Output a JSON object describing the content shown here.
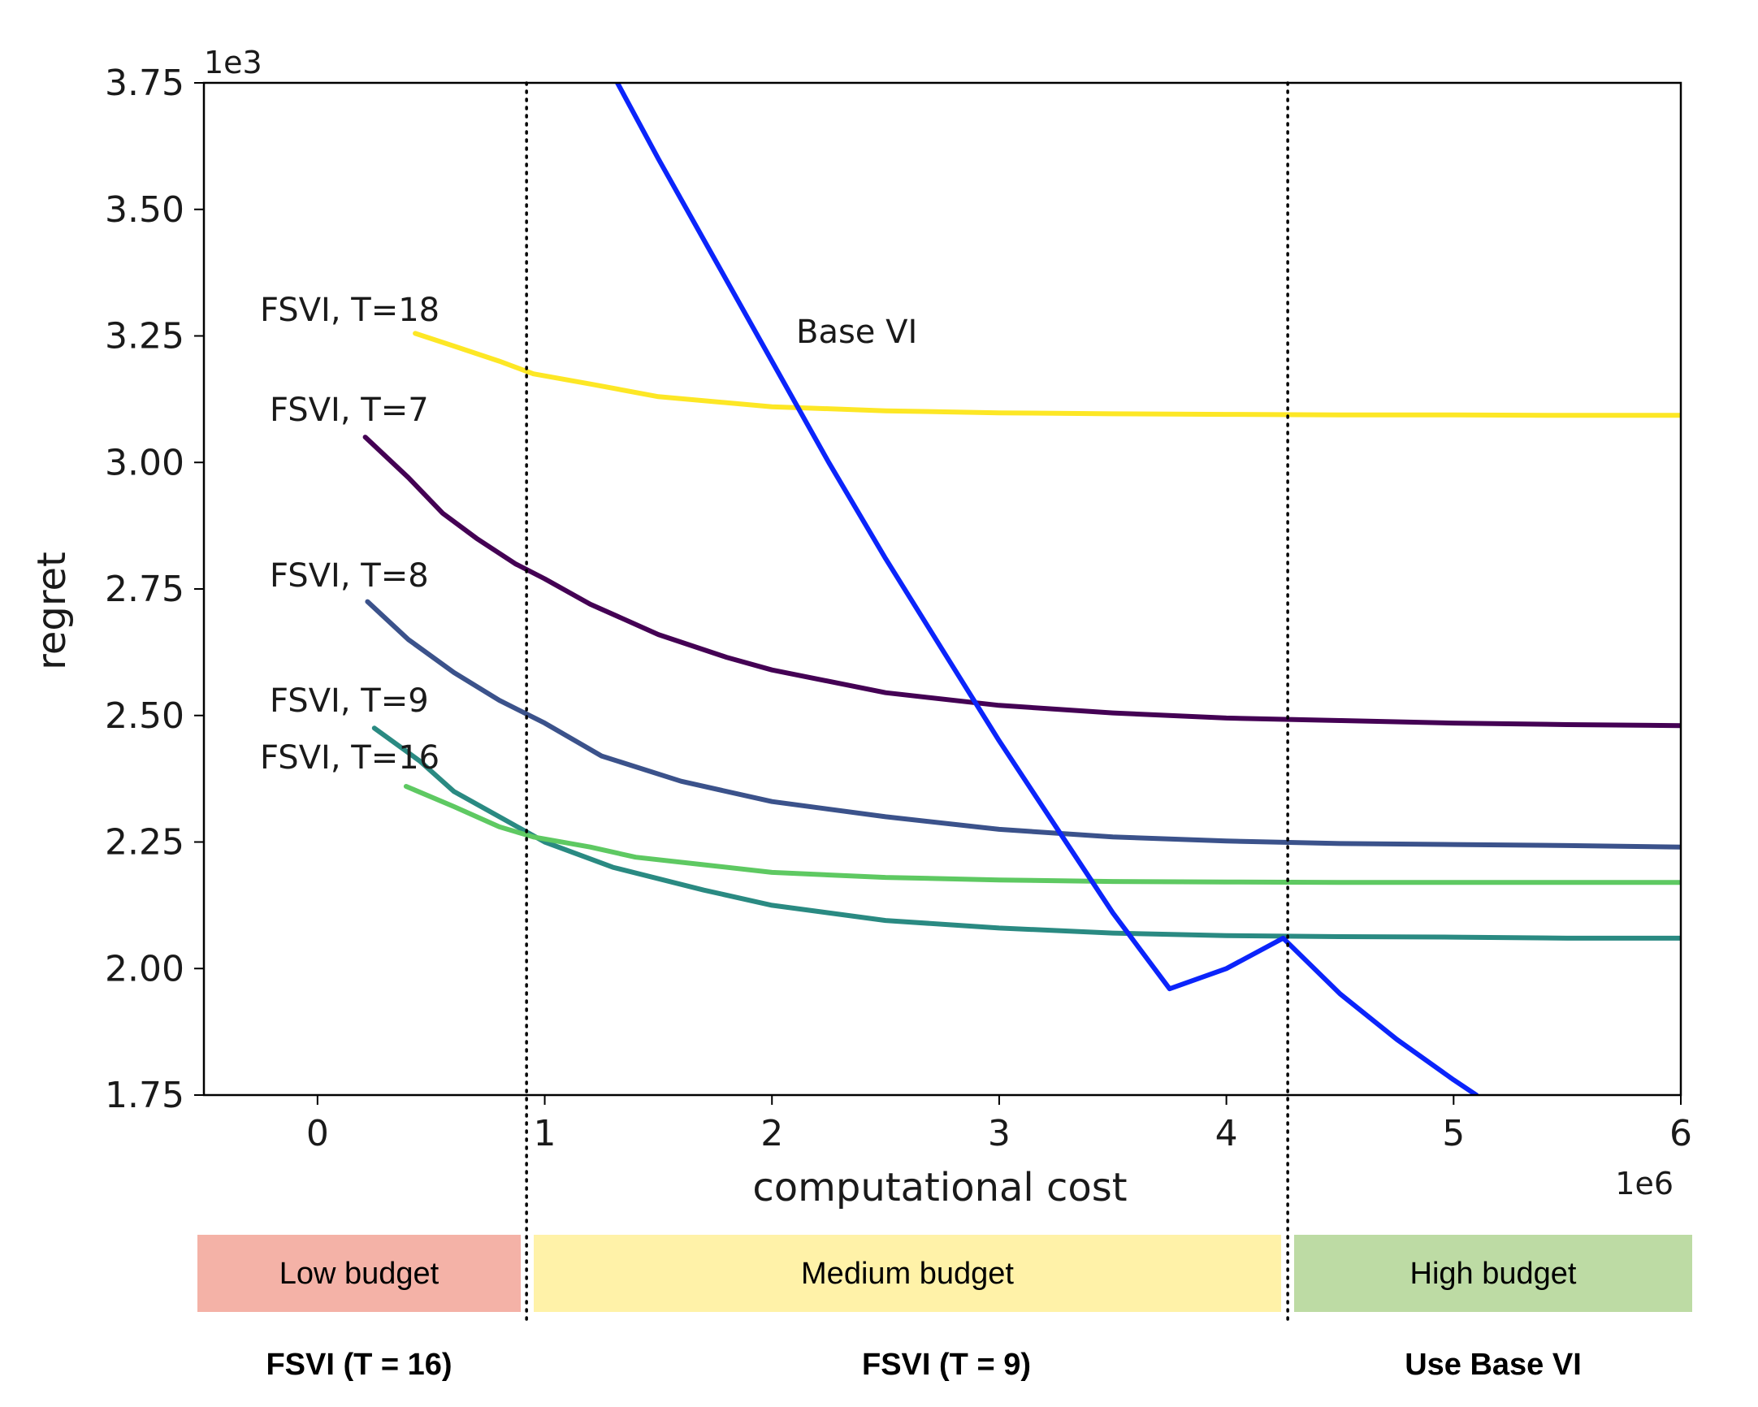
{
  "chart_data": {
    "type": "line",
    "xlabel": "computational cost",
    "ylabel": "regret",
    "x_scale_label": "1e6",
    "y_scale_label": "1e3",
    "xlim": [
      -0.5,
      6
    ],
    "ylim": [
      1.75,
      3.75
    ],
    "x_ticks": [
      0,
      1,
      2,
      3,
      4,
      5,
      6
    ],
    "x_tick_labels": [
      "0",
      "1",
      "2",
      "3",
      "4",
      "5",
      "6"
    ],
    "y_ticks": [
      1.75,
      2.0,
      2.25,
      2.5,
      2.75,
      3.0,
      3.25,
      3.5,
      3.75
    ],
    "y_tick_labels": [
      "1.75",
      "2.00",
      "2.25",
      "2.50",
      "2.75",
      "3.00",
      "3.25",
      "3.50",
      "3.75"
    ],
    "grid": false,
    "vlines": [
      0.92,
      4.27
    ],
    "series": [
      {
        "name": "FSVI, T=18",
        "color": "#fde725",
        "x": [
          0.43,
          0.6,
          0.8,
          0.95,
          1.2,
          1.5,
          2.0,
          2.5,
          3.0,
          3.5,
          4.0,
          4.5,
          5.0,
          5.5,
          6.0
        ],
        "y": [
          3.255,
          3.23,
          3.2,
          3.175,
          3.155,
          3.13,
          3.11,
          3.102,
          3.098,
          3.096,
          3.095,
          3.094,
          3.094,
          3.093,
          3.093
        ]
      },
      {
        "name": "FSVI, T=7",
        "color": "#440154",
        "x": [
          0.21,
          0.4,
          0.55,
          0.7,
          0.87,
          1.0,
          1.2,
          1.5,
          1.8,
          2.0,
          2.5,
          3.0,
          3.5,
          4.0,
          4.5,
          5.0,
          5.5,
          6.0
        ],
        "y": [
          3.05,
          2.97,
          2.9,
          2.85,
          2.8,
          2.77,
          2.72,
          2.66,
          2.615,
          2.59,
          2.545,
          2.52,
          2.505,
          2.495,
          2.49,
          2.485,
          2.482,
          2.48
        ]
      },
      {
        "name": "FSVI, T=8",
        "color": "#3b528b",
        "x": [
          0.22,
          0.4,
          0.6,
          0.8,
          1.0,
          1.25,
          1.6,
          2.0,
          2.5,
          3.0,
          3.5,
          4.0,
          4.5,
          5.0,
          5.5,
          6.0
        ],
        "y": [
          2.725,
          2.65,
          2.585,
          2.53,
          2.485,
          2.42,
          2.37,
          2.33,
          2.3,
          2.275,
          2.26,
          2.252,
          2.247,
          2.245,
          2.243,
          2.24
        ]
      },
      {
        "name": "FSVI, T=9",
        "color": "#2a8a82",
        "x": [
          0.25,
          0.45,
          0.6,
          0.8,
          1.0,
          1.3,
          1.7,
          2.0,
          2.5,
          3.0,
          3.5,
          4.0,
          4.5,
          5.0,
          5.5,
          6.0
        ],
        "y": [
          2.475,
          2.41,
          2.35,
          2.3,
          2.25,
          2.2,
          2.155,
          2.125,
          2.095,
          2.08,
          2.07,
          2.065,
          2.063,
          2.062,
          2.06,
          2.06
        ]
      },
      {
        "name": "FSVI, T=16",
        "color": "#5ec962",
        "x": [
          0.39,
          0.6,
          0.8,
          0.95,
          1.2,
          1.4,
          1.7,
          2.0,
          2.5,
          3.0,
          3.5,
          4.0,
          4.5,
          5.0,
          5.5,
          6.0
        ],
        "y": [
          2.36,
          2.32,
          2.28,
          2.26,
          2.24,
          2.22,
          2.205,
          2.19,
          2.18,
          2.175,
          2.172,
          2.171,
          2.17,
          2.17,
          2.17,
          2.17
        ]
      },
      {
        "name": "Base VI",
        "color": "#0b24fb",
        "x": [
          1.32,
          1.5,
          1.75,
          2.0,
          2.25,
          2.5,
          2.75,
          3.0,
          3.25,
          3.5,
          3.75,
          4.0,
          4.25,
          4.5,
          4.75,
          5.0,
          5.1
        ],
        "y": [
          3.75,
          3.6,
          3.4,
          3.2,
          3.0,
          2.81,
          2.63,
          2.45,
          2.28,
          2.11,
          1.96,
          2.0,
          2.06,
          1.95,
          1.86,
          1.78,
          1.75
        ]
      }
    ]
  },
  "series_labels": {
    "t18": "FSVI, T=18",
    "t7": "FSVI, T=7",
    "t8": "FSVI, T=8",
    "t9": "FSVI, T=9",
    "t16": "FSVI, T=16",
    "base": "Base VI"
  },
  "budget_bands": [
    {
      "label": "Low budget",
      "color": "#f4b2a7",
      "recommendation": "FSVI (T = 16)"
    },
    {
      "label": "Medium budget",
      "color": "#fff2a8",
      "recommendation": "FSVI (T = 9)"
    },
    {
      "label": "High budget",
      "color": "#bddba4",
      "recommendation": "Use Base VI"
    }
  ]
}
